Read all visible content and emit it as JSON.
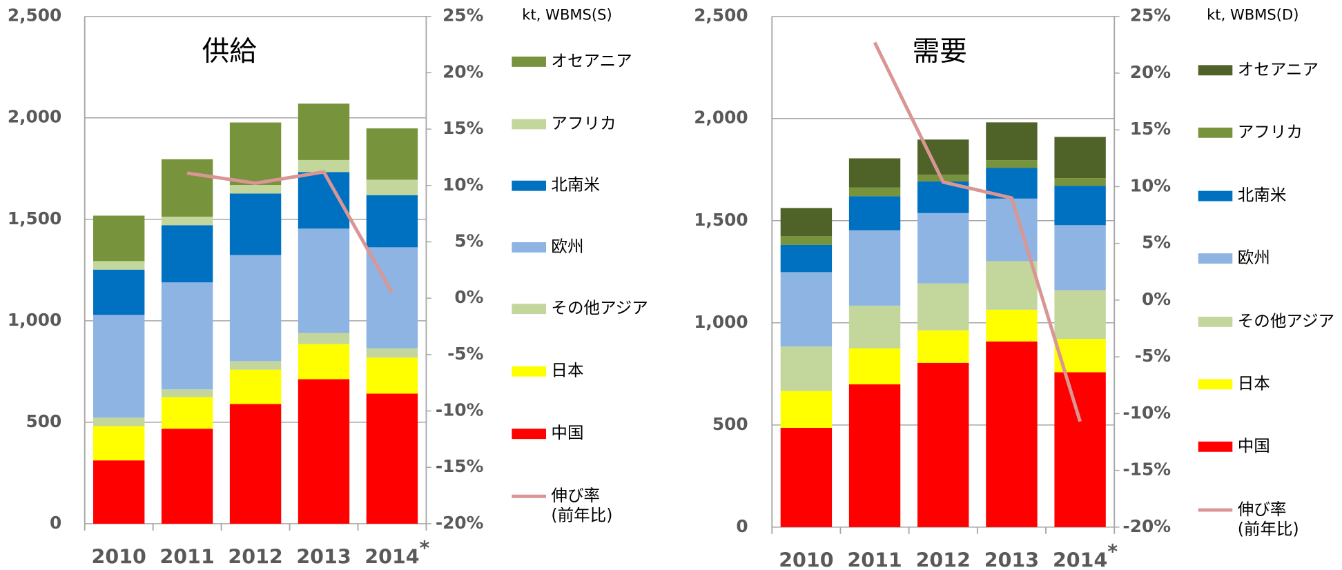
{
  "chart_data": [
    {
      "type": "bar",
      "stacked": true,
      "grid": true,
      "title": "供給",
      "unit_label": "kt, WBMS(S)",
      "annotation": "*",
      "categories": [
        "2010",
        "2011",
        "2012",
        "2013",
        "2014"
      ],
      "ylim": [
        0,
        2500
      ],
      "yticks": [
        0,
        500,
        {
          "value": 1000,
          "label": "1,000"
        },
        {
          "value": 1500,
          "label": "1,500"
        },
        {
          "value": 2000,
          "label": "2,000"
        },
        {
          "value": 2500,
          "label": "2,500"
        }
      ],
      "y2lim": [
        -20,
        25
      ],
      "y2ticks": [
        {
          "value": -20,
          "label": "-20%"
        },
        {
          "value": -15,
          "label": "-15%"
        },
        {
          "value": -10,
          "label": "-10%"
        },
        {
          "value": -5,
          "label": "-5%"
        },
        {
          "value": 0,
          "label": "0%"
        },
        {
          "value": 5,
          "label": "5%"
        },
        {
          "value": 10,
          "label": "10%"
        },
        {
          "value": 15,
          "label": "15%"
        },
        {
          "value": 20,
          "label": "20%"
        },
        {
          "value": 25,
          "label": "25%"
        }
      ],
      "series": [
        {
          "name": "中国",
          "color": "#ff0000",
          "values": [
            312,
            468,
            590,
            712,
            641
          ]
        },
        {
          "name": "日本",
          "color": "#ffff00",
          "values": [
            169,
            156,
            169,
            173,
            177
          ]
        },
        {
          "name": "その他アジア",
          "color": "#c3d69b",
          "values": [
            42,
            38,
            42,
            55,
            46
          ]
        },
        {
          "name": "欧州",
          "color": "#8eb4e3",
          "values": [
            506,
            527,
            523,
            514,
            498
          ]
        },
        {
          "name": "北南米",
          "color": "#0070c0",
          "values": [
            223,
            282,
            303,
            279,
            257
          ]
        },
        {
          "name": "アフリカ",
          "color": "#c3d69b",
          "values": [
            42,
            42,
            42,
            59,
            76
          ]
        },
        {
          "name": "オセアニア",
          "color": "#77933c",
          "values": [
            224,
            283,
            308,
            278,
            253
          ]
        },
        {
          "name": "伸び率\n(前年比)",
          "color": "#d99694",
          "type": "line",
          "axis": "y2",
          "values": [
            null,
            11.1,
            10.2,
            11.2,
            0.5
          ]
        }
      ]
    },
    {
      "type": "bar",
      "stacked": true,
      "grid": true,
      "title": "需要",
      "unit_label": "kt, WBMS(D)",
      "annotation": "*",
      "categories": [
        "2010",
        "2011",
        "2012",
        "2013",
        "2014"
      ],
      "ylim": [
        0,
        2500
      ],
      "yticks": [
        0,
        500,
        {
          "value": 1000,
          "label": "1,000"
        },
        {
          "value": 1500,
          "label": "1,500"
        },
        {
          "value": 2000,
          "label": "2,000"
        },
        {
          "value": 2500,
          "label": "2,500"
        }
      ],
      "y2lim": [
        -20,
        25
      ],
      "y2ticks": [
        {
          "value": -20,
          "label": "-20%"
        },
        {
          "value": -15,
          "label": "-15%"
        },
        {
          "value": -10,
          "label": "-10%"
        },
        {
          "value": -5,
          "label": "-5%"
        },
        {
          "value": 0,
          "label": "0%"
        },
        {
          "value": 5,
          "label": "5%"
        },
        {
          "value": 10,
          "label": "10%"
        },
        {
          "value": 15,
          "label": "15%"
        },
        {
          "value": 20,
          "label": "20%"
        },
        {
          "value": 25,
          "label": "25%"
        }
      ],
      "series": [
        {
          "name": "中国",
          "color": "#ff0000",
          "values": [
            486,
            699,
            804,
            909,
            758
          ]
        },
        {
          "name": "日本",
          "color": "#ffff00",
          "values": [
            180,
            176,
            159,
            155,
            163
          ]
        },
        {
          "name": "その他アジア",
          "color": "#c3d69b",
          "values": [
            218,
            209,
            230,
            238,
            239
          ]
        },
        {
          "name": "欧州",
          "color": "#8eb4e3",
          "values": [
            364,
            369,
            344,
            306,
            318
          ]
        },
        {
          "name": "北南米",
          "color": "#0070c0",
          "values": [
            134,
            167,
            155,
            151,
            193
          ]
        },
        {
          "name": "アフリカ",
          "color": "#77933c",
          "values": [
            42,
            42,
            33,
            37,
            37
          ]
        },
        {
          "name": "オセアニア",
          "color": "#4f6228",
          "values": [
            138,
            143,
            172,
            185,
            202
          ]
        },
        {
          "name": "伸び率\n(前年比)",
          "color": "#d99694",
          "type": "line",
          "axis": "y2",
          "values": [
            null,
            22.7,
            10.4,
            9.0,
            -10.7
          ]
        }
      ]
    }
  ]
}
